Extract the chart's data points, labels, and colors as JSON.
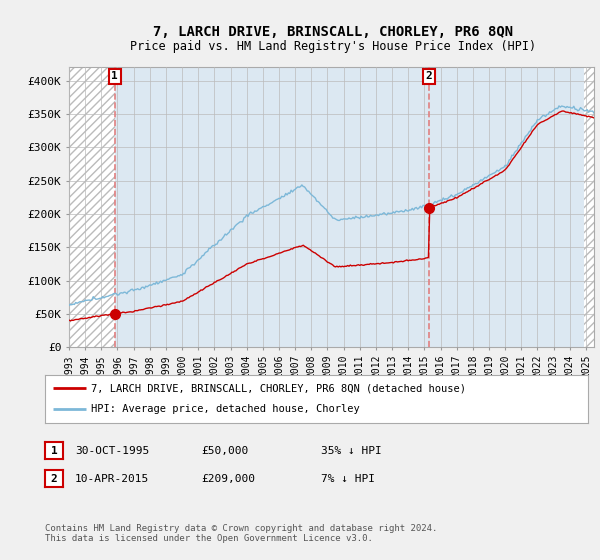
{
  "title": "7, LARCH DRIVE, BRINSCALL, CHORLEY, PR6 8QN",
  "subtitle": "Price paid vs. HM Land Registry's House Price Index (HPI)",
  "sale1_date": 1995.83,
  "sale1_price": 50000,
  "sale2_date": 2015.27,
  "sale2_price": 209000,
  "hpi_line_color": "#7db8d8",
  "price_line_color": "#cc0000",
  "sale_marker_color": "#cc0000",
  "vline_color": "#e08080",
  "legend_entry1": "7, LARCH DRIVE, BRINSCALL, CHORLEY, PR6 8QN (detached house)",
  "legend_entry2": "HPI: Average price, detached house, Chorley",
  "table_row1": [
    "1",
    "30-OCT-1995",
    "£50,000",
    "35% ↓ HPI"
  ],
  "table_row2": [
    "2",
    "10-APR-2015",
    "£209,000",
    "7% ↓ HPI"
  ],
  "footer": "Contains HM Land Registry data © Crown copyright and database right 2024.\nThis data is licensed under the Open Government Licence v3.0.",
  "ylim": [
    0,
    420000
  ],
  "xlim_start": 1993.0,
  "xlim_end": 2025.5,
  "yticks": [
    0,
    50000,
    100000,
    150000,
    200000,
    250000,
    300000,
    350000,
    400000
  ],
  "ytick_labels": [
    "£0",
    "£50K",
    "£100K",
    "£150K",
    "£200K",
    "£250K",
    "£300K",
    "£350K",
    "£400K"
  ],
  "background_color": "#f0f0f0",
  "plot_bg_color": "#dce8f2",
  "hatch_color": "#bbbbbb",
  "grid_color": "#bbbbbb"
}
